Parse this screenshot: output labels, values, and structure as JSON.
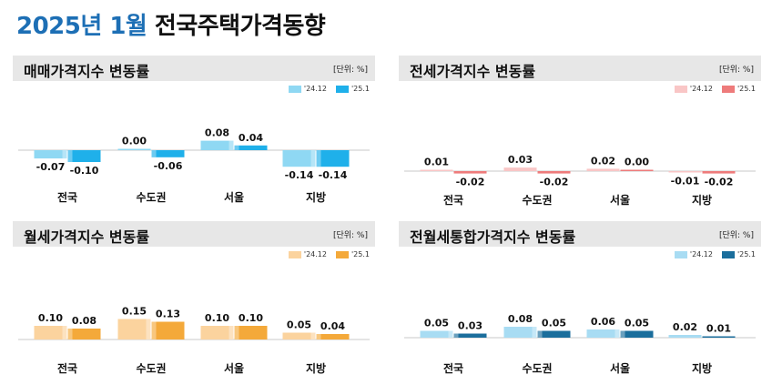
{
  "header": {
    "title_year": "2025년 1월",
    "title_main": "전국주택가격동향"
  },
  "chart_data": [
    {
      "type": "bar",
      "id": "sale",
      "title": "매매가격지수 변동률",
      "unit": "[단위: %]",
      "categories": [
        "전국",
        "수도권",
        "서울",
        "지방"
      ],
      "series": [
        {
          "name": "'24.12",
          "color": "#8fd8f3",
          "values": [
            -0.07,
            0.0,
            0.08,
            -0.14
          ],
          "labels": [
            "-0.07",
            "0.00",
            "0.08",
            "-0.14"
          ]
        },
        {
          "name": "'25.1",
          "color": "#1fb0ea",
          "values": [
            -0.1,
            -0.06,
            0.04,
            -0.14
          ],
          "labels": [
            "-0.10",
            "-0.06",
            "0.04",
            "-0.14"
          ]
        }
      ],
      "ylim": [
        -0.16,
        0.16
      ]
    },
    {
      "type": "bar",
      "id": "jeonse",
      "title": "전세가격지수 변동률",
      "unit": "[단위: %]",
      "categories": [
        "전국",
        "수도권",
        "서울",
        "지방"
      ],
      "series": [
        {
          "name": "'24.12",
          "color": "#f9c6c6",
          "values": [
            0.01,
            0.03,
            0.02,
            -0.01
          ],
          "labels": [
            "0.01",
            "0.03",
            "0.02",
            "-0.01"
          ]
        },
        {
          "name": "'25.1",
          "color": "#ee7b7b",
          "values": [
            -0.02,
            -0.02,
            0.0,
            -0.02
          ],
          "labels": [
            "-0.02",
            "-0.02",
            "0.00",
            "-0.02"
          ]
        }
      ],
      "ylim": [
        -0.16,
        0.16
      ]
    },
    {
      "type": "bar",
      "id": "monthly",
      "title": "월세가격지수 변동률",
      "unit": "[단위: %]",
      "categories": [
        "전국",
        "수도권",
        "서울",
        "지방"
      ],
      "series": [
        {
          "name": "'24.12",
          "color": "#fbd39e",
          "values": [
            0.1,
            0.15,
            0.1,
            0.05
          ],
          "labels": [
            "0.10",
            "0.15",
            "0.10",
            "0.05"
          ]
        },
        {
          "name": "'25.1",
          "color": "#f4a93a",
          "values": [
            0.08,
            0.13,
            0.1,
            0.04
          ],
          "labels": [
            "0.08",
            "0.13",
            "0.10",
            "0.04"
          ]
        }
      ],
      "ylim": [
        0,
        0.16
      ]
    },
    {
      "type": "bar",
      "id": "combined",
      "title": "전월세통합가격지수 변동률",
      "unit": "[단위: %]",
      "categories": [
        "전국",
        "수도권",
        "서울",
        "지방"
      ],
      "series": [
        {
          "name": "'24.12",
          "color": "#a8dcf3",
          "values": [
            0.05,
            0.08,
            0.06,
            0.02
          ],
          "labels": [
            "0.05",
            "0.08",
            "0.06",
            "0.02"
          ]
        },
        {
          "name": "'25.1",
          "color": "#1b6e9c",
          "values": [
            0.03,
            0.05,
            0.05,
            0.01
          ],
          "labels": [
            "0.03",
            "0.05",
            "0.05",
            "0.01"
          ]
        }
      ],
      "ylim": [
        0,
        0.16
      ]
    }
  ]
}
